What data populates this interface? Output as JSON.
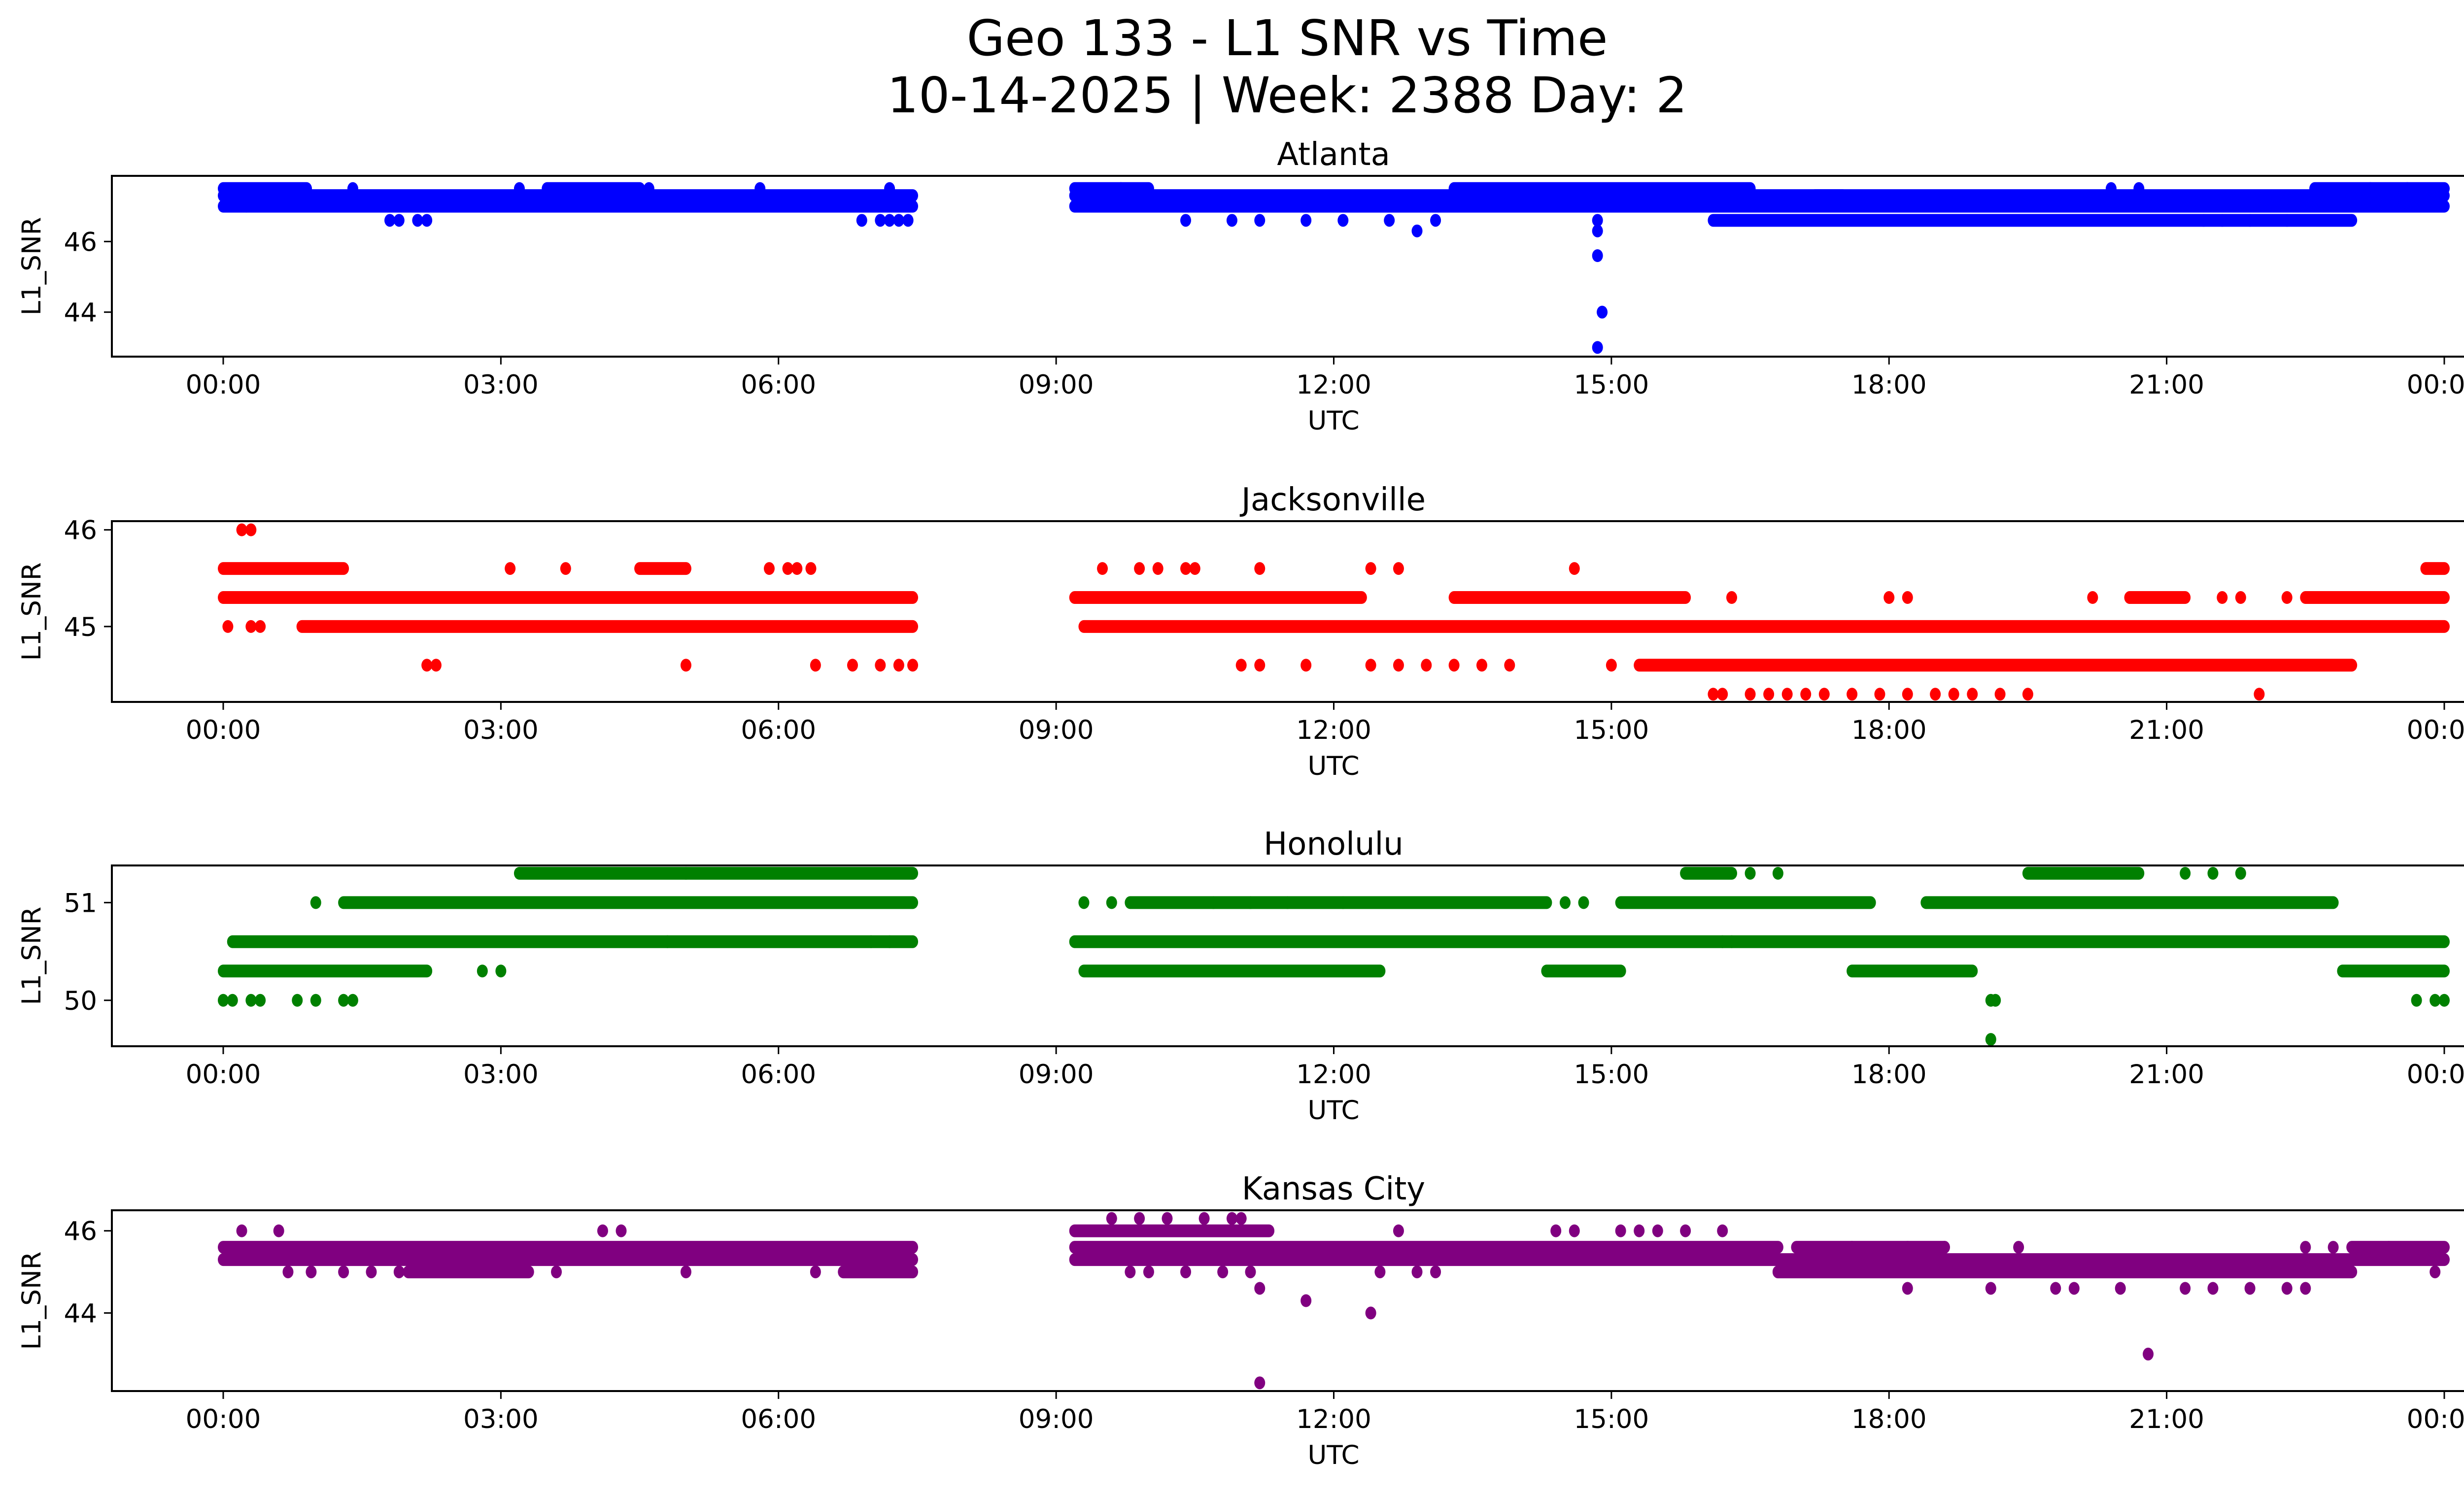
{
  "figure": {
    "title_line1": "Geo 133 - L1 SNR vs Time",
    "title_line2": "10-14-2025 | Week: 2388 Day: 2"
  },
  "chart_data": [
    {
      "type": "scatter",
      "title": "Atlanta",
      "xlabel": "UTC",
      "ylabel": "L1_SNR",
      "color": "#0000ff",
      "xlim_hours": [
        -0.72,
        25.6
      ],
      "ylim": [
        42.74,
        47.86
      ],
      "xticks": [
        "00:00",
        "03:00",
        "06:00",
        "09:00",
        "12:00",
        "15:00",
        "18:00",
        "21:00",
        "00:00"
      ],
      "xtick_hours": [
        0,
        3,
        6,
        9,
        12,
        15,
        18,
        21,
        24
      ],
      "yticks": [
        44,
        46
      ],
      "runs": [
        [
          0.0,
          0.9,
          47.5
        ],
        [
          0.0,
          7.45,
          47.3
        ],
        [
          0.0,
          7.45,
          47.0
        ],
        [
          3.5,
          4.5,
          47.5
        ],
        [
          9.2,
          10.0,
          47.5
        ],
        [
          9.2,
          14.5,
          47.3
        ],
        [
          9.2,
          24.0,
          47.0
        ],
        [
          13.3,
          16.5,
          47.5
        ],
        [
          13.3,
          16.5,
          47.3
        ],
        [
          16.0,
          17.5,
          47.3
        ],
        [
          17.2,
          24.0,
          47.3
        ],
        [
          22.6,
          24.0,
          47.5
        ],
        [
          16.1,
          23.0,
          46.6
        ]
      ],
      "points": [
        [
          0.25,
          47.0
        ],
        [
          1.8,
          46.6
        ],
        [
          1.9,
          46.6
        ],
        [
          2.1,
          46.6
        ],
        [
          2.2,
          46.6
        ],
        [
          1.4,
          47.5
        ],
        [
          3.2,
          47.5
        ],
        [
          4.6,
          47.5
        ],
        [
          5.8,
          47.5
        ],
        [
          6.9,
          46.6
        ],
        [
          7.1,
          46.6
        ],
        [
          7.2,
          46.6
        ],
        [
          7.3,
          46.6
        ],
        [
          7.4,
          46.6
        ],
        [
          7.2,
          47.5
        ],
        [
          9.7,
          47.5
        ],
        [
          10.4,
          46.6
        ],
        [
          10.9,
          46.6
        ],
        [
          11.2,
          46.6
        ],
        [
          11.7,
          46.6
        ],
        [
          12.1,
          46.6
        ],
        [
          12.6,
          46.6
        ],
        [
          12.9,
          46.3
        ],
        [
          13.1,
          46.6
        ],
        [
          14.85,
          46.6
        ],
        [
          14.85,
          46.3
        ],
        [
          14.85,
          45.6
        ],
        [
          14.9,
          44.0
        ],
        [
          14.85,
          43.0
        ],
        [
          20.4,
          47.5
        ],
        [
          20.7,
          47.5
        ],
        [
          21.4,
          46.6
        ],
        [
          21.6,
          46.6
        ],
        [
          21.9,
          46.6
        ],
        [
          22.3,
          46.6
        ],
        [
          23.2,
          47.5
        ],
        [
          23.6,
          47.5
        ]
      ]
    },
    {
      "type": "scatter",
      "title": "Jacksonville",
      "xlabel": "UTC",
      "ylabel": "L1_SNR",
      "color": "#ff0000",
      "xlim_hours": [
        -0.72,
        25.6
      ],
      "ylim": [
        44.22,
        46.09
      ],
      "xticks": [
        "00:00",
        "03:00",
        "06:00",
        "09:00",
        "12:00",
        "15:00",
        "18:00",
        "21:00",
        "00:00"
      ],
      "xtick_hours": [
        0,
        3,
        6,
        9,
        12,
        15,
        18,
        21,
        24
      ],
      "yticks": [
        45,
        46
      ],
      "runs": [
        [
          0.0,
          1.3,
          45.6
        ],
        [
          0.0,
          7.45,
          45.3
        ],
        [
          0.85,
          7.45,
          45.0
        ],
        [
          4.5,
          5.0,
          45.6
        ],
        [
          9.2,
          12.3,
          45.3
        ],
        [
          9.3,
          24.0,
          45.0
        ],
        [
          13.3,
          15.8,
          45.3
        ],
        [
          15.3,
          23.0,
          44.6
        ],
        [
          20.6,
          21.2,
          45.3
        ],
        [
          22.5,
          24.0,
          45.3
        ],
        [
          23.8,
          24.0,
          45.6
        ]
      ],
      "points": [
        [
          0.2,
          46.0
        ],
        [
          0.3,
          46.0
        ],
        [
          0.05,
          45.0
        ],
        [
          0.3,
          45.0
        ],
        [
          0.4,
          45.0
        ],
        [
          2.2,
          44.6
        ],
        [
          2.3,
          44.6
        ],
        [
          3.1,
          45.6
        ],
        [
          3.7,
          45.6
        ],
        [
          5.0,
          44.6
        ],
        [
          5.9,
          45.6
        ],
        [
          6.1,
          45.6
        ],
        [
          6.2,
          45.6
        ],
        [
          6.35,
          45.6
        ],
        [
          6.4,
          44.6
        ],
        [
          6.8,
          44.6
        ],
        [
          7.1,
          44.6
        ],
        [
          7.3,
          44.6
        ],
        [
          7.45,
          44.6
        ],
        [
          9.5,
          45.6
        ],
        [
          9.9,
          45.6
        ],
        [
          10.1,
          45.6
        ],
        [
          10.4,
          45.6
        ],
        [
          10.5,
          45.6
        ],
        [
          11.0,
          44.6
        ],
        [
          11.2,
          44.6
        ],
        [
          11.2,
          45.6
        ],
        [
          11.7,
          44.6
        ],
        [
          12.4,
          45.6
        ],
        [
          12.4,
          44.6
        ],
        [
          12.7,
          44.6
        ],
        [
          12.7,
          45.6
        ],
        [
          13.0,
          44.6
        ],
        [
          13.3,
          44.6
        ],
        [
          13.6,
          44.6
        ],
        [
          13.9,
          44.6
        ],
        [
          14.6,
          45.6
        ],
        [
          15.0,
          44.6
        ],
        [
          16.3,
          45.3
        ],
        [
          18.0,
          45.3
        ],
        [
          18.2,
          45.3
        ],
        [
          20.2,
          45.3
        ],
        [
          21.6,
          45.3
        ],
        [
          21.8,
          45.3
        ],
        [
          22.3,
          45.3
        ],
        [
          16.1,
          44.3
        ],
        [
          16.2,
          44.3
        ],
        [
          16.5,
          44.3
        ],
        [
          16.7,
          44.3
        ],
        [
          16.9,
          44.3
        ],
        [
          17.1,
          44.3
        ],
        [
          17.3,
          44.3
        ],
        [
          17.6,
          44.3
        ],
        [
          17.9,
          44.3
        ],
        [
          18.2,
          44.3
        ],
        [
          18.5,
          44.3
        ],
        [
          18.7,
          44.3
        ],
        [
          18.9,
          44.3
        ],
        [
          19.2,
          44.3
        ],
        [
          19.5,
          44.3
        ],
        [
          22.0,
          44.3
        ]
      ]
    },
    {
      "type": "scatter",
      "title": "Honolulu",
      "xlabel": "UTC",
      "ylabel": "L1_SNR",
      "color": "#008000",
      "xlim_hours": [
        -0.72,
        25.6
      ],
      "ylim": [
        49.53,
        51.38
      ],
      "xticks": [
        "00:00",
        "03:00",
        "06:00",
        "09:00",
        "12:00",
        "15:00",
        "18:00",
        "21:00",
        "00:00"
      ],
      "xtick_hours": [
        0,
        3,
        6,
        9,
        12,
        15,
        18,
        21,
        24
      ],
      "yticks": [
        50,
        51
      ],
      "runs": [
        [
          3.2,
          7.45,
          51.3
        ],
        [
          1.3,
          7.45,
          51.0
        ],
        [
          0.1,
          7.45,
          50.6
        ],
        [
          0.0,
          2.2,
          50.3
        ],
        [
          9.8,
          14.3,
          51.0
        ],
        [
          15.1,
          17.8,
          51.0
        ],
        [
          18.4,
          22.8,
          51.0
        ],
        [
          9.2,
          24.0,
          50.6
        ],
        [
          9.3,
          12.5,
          50.3
        ],
        [
          14.3,
          15.1,
          50.3
        ],
        [
          17.6,
          18.9,
          50.3
        ],
        [
          22.9,
          24.0,
          50.3
        ],
        [
          15.8,
          16.3,
          51.3
        ],
        [
          19.5,
          20.7,
          51.3
        ]
      ],
      "points": [
        [
          0.0,
          50.0
        ],
        [
          0.1,
          50.0
        ],
        [
          0.3,
          50.0
        ],
        [
          0.4,
          50.0
        ],
        [
          0.8,
          50.0
        ],
        [
          1.0,
          50.0
        ],
        [
          1.3,
          50.0
        ],
        [
          1.4,
          50.0
        ],
        [
          1.0,
          51.0
        ],
        [
          2.8,
          50.3
        ],
        [
          3.0,
          50.3
        ],
        [
          4.8,
          50.6
        ],
        [
          5.0,
          51.3
        ],
        [
          7.0,
          50.6
        ],
        [
          7.2,
          50.6
        ],
        [
          9.3,
          51.0
        ],
        [
          9.6,
          51.0
        ],
        [
          10.7,
          51.0
        ],
        [
          11.1,
          51.0
        ],
        [
          11.5,
          51.0
        ],
        [
          12.1,
          51.0
        ],
        [
          14.5,
          51.0
        ],
        [
          14.7,
          51.0
        ],
        [
          16.5,
          51.3
        ],
        [
          16.8,
          51.3
        ],
        [
          16.2,
          50.6
        ],
        [
          16.3,
          50.6
        ],
        [
          21.2,
          51.3
        ],
        [
          21.5,
          51.3
        ],
        [
          21.8,
          51.3
        ],
        [
          19.1,
          50.0
        ],
        [
          19.15,
          50.0
        ],
        [
          19.1,
          49.6
        ],
        [
          23.7,
          50.0
        ],
        [
          23.9,
          50.0
        ],
        [
          24.0,
          50.0
        ]
      ]
    },
    {
      "type": "scatter",
      "title": "Kansas City",
      "xlabel": "UTC",
      "ylabel": "L1_SNR",
      "color": "#800080",
      "xlim_hours": [
        -0.72,
        25.6
      ],
      "ylim": [
        42.1,
        46.5
      ],
      "xticks": [
        "00:00",
        "03:00",
        "06:00",
        "09:00",
        "12:00",
        "15:00",
        "18:00",
        "21:00",
        "00:00"
      ],
      "xtick_hours": [
        0,
        3,
        6,
        9,
        12,
        15,
        18,
        21,
        24
      ],
      "yticks": [
        44,
        46
      ],
      "runs": [
        [
          0.0,
          7.45,
          45.6
        ],
        [
          0.0,
          7.45,
          45.3
        ],
        [
          2.0,
          3.3,
          45.0
        ],
        [
          6.7,
          7.45,
          45.0
        ],
        [
          9.2,
          11.3,
          46.0
        ],
        [
          9.2,
          16.8,
          45.6
        ],
        [
          9.2,
          24.0,
          45.3
        ],
        [
          16.8,
          23.0,
          45.0
        ],
        [
          23.0,
          24.0,
          45.6
        ],
        [
          17.0,
          18.6,
          45.6
        ]
      ],
      "points": [
        [
          0.2,
          46.0
        ],
        [
          0.6,
          46.0
        ],
        [
          0.7,
          45.0
        ],
        [
          0.95,
          45.0
        ],
        [
          1.3,
          45.0
        ],
        [
          1.6,
          45.0
        ],
        [
          1.9,
          45.0
        ],
        [
          3.6,
          45.0
        ],
        [
          4.1,
          46.0
        ],
        [
          4.3,
          46.0
        ],
        [
          5.0,
          45.0
        ],
        [
          6.4,
          45.0
        ],
        [
          9.6,
          46.3
        ],
        [
          9.9,
          46.3
        ],
        [
          10.2,
          46.3
        ],
        [
          10.6,
          46.3
        ],
        [
          10.9,
          46.3
        ],
        [
          11.0,
          46.3
        ],
        [
          9.8,
          45.0
        ],
        [
          10.0,
          45.0
        ],
        [
          10.4,
          45.0
        ],
        [
          10.8,
          45.0
        ],
        [
          11.1,
          45.0
        ],
        [
          11.2,
          44.6
        ],
        [
          11.2,
          42.3
        ],
        [
          11.7,
          44.3
        ],
        [
          12.4,
          44.0
        ],
        [
          12.5,
          45.0
        ],
        [
          12.7,
          46.0
        ],
        [
          12.9,
          45.0
        ],
        [
          13.1,
          45.0
        ],
        [
          14.4,
          46.0
        ],
        [
          14.6,
          46.0
        ],
        [
          15.1,
          46.0
        ],
        [
          15.3,
          46.0
        ],
        [
          15.5,
          46.0
        ],
        [
          15.8,
          46.0
        ],
        [
          16.2,
          46.0
        ],
        [
          16.8,
          45.0
        ],
        [
          17.6,
          45.6
        ],
        [
          18.2,
          45.6
        ],
        [
          18.2,
          44.6
        ],
        [
          18.6,
          45.6
        ],
        [
          19.1,
          44.6
        ],
        [
          19.4,
          45.6
        ],
        [
          19.8,
          44.6
        ],
        [
          20.0,
          44.6
        ],
        [
          20.5,
          44.6
        ],
        [
          20.8,
          43.0
        ],
        [
          21.2,
          44.6
        ],
        [
          21.5,
          44.6
        ],
        [
          21.9,
          44.6
        ],
        [
          22.3,
          44.6
        ],
        [
          22.5,
          44.6
        ],
        [
          22.5,
          45.6
        ],
        [
          22.8,
          45.6
        ],
        [
          23.4,
          45.6
        ],
        [
          23.9,
          45.0
        ]
      ]
    }
  ]
}
